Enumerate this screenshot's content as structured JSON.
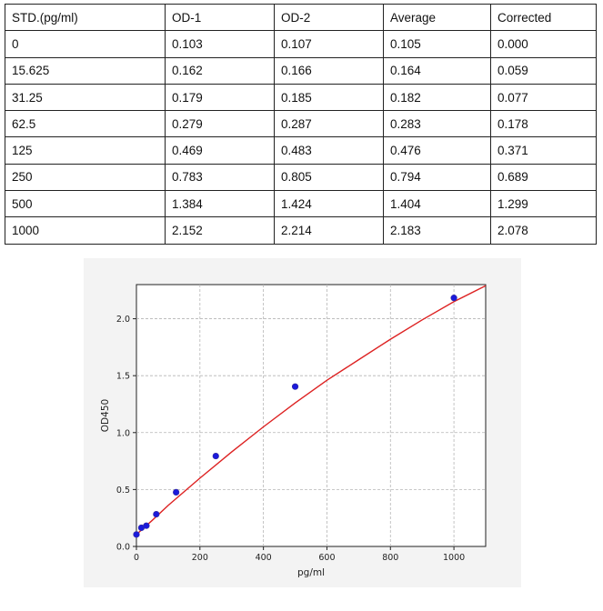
{
  "table": {
    "headers": [
      "STD.(pg/ml)",
      "OD-1",
      "OD-2",
      "Average",
      "Corrected"
    ],
    "rows": [
      [
        "0",
        "0.103",
        "0.107",
        "0.105",
        "0.000"
      ],
      [
        "15.625",
        "0.162",
        "0.166",
        "0.164",
        "0.059"
      ],
      [
        "31.25",
        "0.179",
        "0.185",
        "0.182",
        "0.077"
      ],
      [
        "62.5",
        "0.279",
        "0.287",
        "0.283",
        "0.178"
      ],
      [
        "125",
        "0.469",
        "0.483",
        "0.476",
        "0.371"
      ],
      [
        "250",
        "0.783",
        "0.805",
        "0.794",
        "0.689"
      ],
      [
        "500",
        "1.384",
        "1.424",
        "1.404",
        "1.299"
      ],
      [
        "1000",
        "2.152",
        "2.214",
        "2.183",
        "2.078"
      ]
    ]
  },
  "chart_data": {
    "type": "scatter",
    "title": "",
    "xlabel": "pg/ml",
    "ylabel": "OD450",
    "xlim": [
      0,
      1100
    ],
    "ylim": [
      0,
      2.3
    ],
    "xticks": [
      0,
      200,
      400,
      600,
      800,
      1000
    ],
    "yticks": [
      0.0,
      0.5,
      1.0,
      1.5,
      2.0
    ],
    "xtick_labels": [
      "0",
      "200",
      "400",
      "600",
      "800",
      "1000"
    ],
    "ytick_labels": [
      "0.0",
      "0.5",
      "1.0",
      "1.5",
      "2.0"
    ],
    "grid": true,
    "series": [
      {
        "kind": "points",
        "x": [
          0,
          15.625,
          31.25,
          62.5,
          125,
          250,
          500,
          1000
        ],
        "y": [
          0.105,
          0.164,
          0.182,
          0.283,
          0.476,
          0.794,
          1.404,
          2.183
        ],
        "color": "#1a1adb"
      },
      {
        "kind": "fit-curve",
        "x": [
          0,
          50,
          100,
          200,
          300,
          400,
          500,
          600,
          700,
          800,
          900,
          1000,
          1100
        ],
        "y": [
          0.105,
          0.23,
          0.36,
          0.6,
          0.83,
          1.05,
          1.26,
          1.46,
          1.64,
          1.82,
          1.99,
          2.15,
          2.29
        ],
        "color": "#dd2222"
      }
    ]
  }
}
